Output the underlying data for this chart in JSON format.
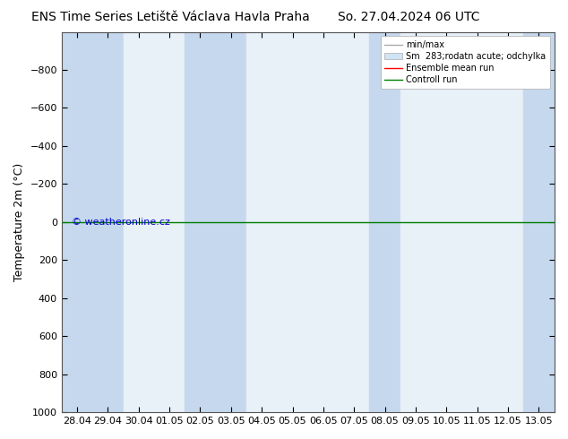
{
  "title_left": "ENS Time Series Letiště Václava Havla Praha",
  "title_right": "So. 27.04.2024 06 UTC",
  "ylabel": "Temperature 2m (°C)",
  "ylim_bottom": 1000,
  "ylim_top": -1000,
  "yticks": [
    -800,
    -600,
    -400,
    -200,
    0,
    200,
    400,
    600,
    800,
    1000
  ],
  "xtick_labels": [
    "28.04",
    "29.04",
    "30.04",
    "01.05",
    "02.05",
    "03.05",
    "04.05",
    "05.05",
    "06.05",
    "07.05",
    "08.05",
    "09.05",
    "10.05",
    "11.05",
    "12.05",
    "13.05"
  ],
  "xtick_values": [
    0,
    1,
    2,
    3,
    4,
    5,
    6,
    7,
    8,
    9,
    10,
    11,
    12,
    13,
    14,
    15
  ],
  "background_color": "#ffffff",
  "plot_bg_color": "#e8f0f8",
  "dark_band_color": "#c5d8ee",
  "light_band_color": "#e8f0f8",
  "dark_band_indices": [
    0,
    1,
    4,
    5,
    10,
    15
  ],
  "control_run_y": 0,
  "control_run_color": "#008000",
  "ensemble_mean_color": "#ff0000",
  "watermark": "© weatheronline.cz",
  "watermark_color": "#0000cc",
  "legend_labels": [
    "min/max",
    "Sm  283;rodatn acute; odchylka",
    "Ensemble mean run",
    "Controll run"
  ],
  "legend_line_colors": [
    "#aaaaaa",
    "#bbccdd",
    "#ff0000",
    "#008000"
  ],
  "title_fontsize": 10,
  "axis_fontsize": 9,
  "tick_fontsize": 8
}
